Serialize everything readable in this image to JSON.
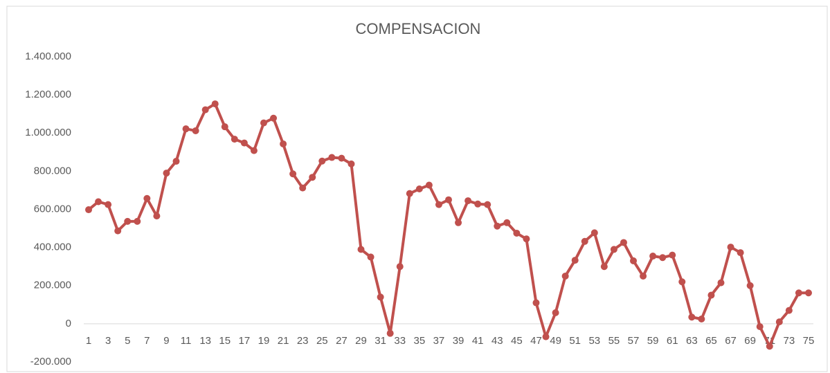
{
  "chart_data": {
    "type": "line",
    "title": "COMPENSACION",
    "categories": [
      1,
      null,
      3,
      null,
      5,
      null,
      7,
      null,
      9,
      null,
      11,
      null,
      13,
      null,
      15,
      null,
      17,
      null,
      19,
      null,
      21,
      null,
      23,
      null,
      25,
      null,
      27,
      null,
      29,
      null,
      31,
      null,
      33,
      null,
      35,
      null,
      37,
      null,
      39,
      null,
      41,
      null,
      43,
      null,
      45,
      null,
      47,
      null,
      49,
      null,
      51,
      null,
      53,
      null,
      55,
      null,
      57,
      null,
      59,
      null,
      61,
      null,
      63,
      null,
      65,
      null,
      67,
      null,
      69,
      null,
      71,
      null,
      73,
      null,
      75
    ],
    "series": [
      {
        "name": "COMPENSACION",
        "color": "#c0504d",
        "values": [
          598000,
          640000,
          625000,
          487000,
          537000,
          537000,
          657000,
          565000,
          790000,
          852000,
          1022000,
          1012000,
          1122000,
          1153000,
          1033000,
          968000,
          948000,
          908000,
          1053000,
          1078000,
          943000,
          786000,
          712000,
          768000,
          853000,
          872000,
          868000,
          838000,
          390000,
          350000,
          140000,
          -50000,
          300000,
          683000,
          707000,
          727000,
          625000,
          650000,
          530000,
          645000,
          628000,
          625000,
          512000,
          530000,
          475000,
          445000,
          110000,
          -68000,
          58000,
          250000,
          333000,
          432000,
          477000,
          300000,
          390000,
          426000,
          330000,
          250000,
          355000,
          347000,
          360000,
          220000,
          35000,
          25000,
          150000,
          215000,
          402000,
          373000,
          200000,
          -15000,
          -118000,
          10000,
          70000,
          162000,
          162000
        ]
      }
    ],
    "ylim": [
      -200000,
      1400000
    ],
    "yticks": [
      {
        "value": -200000,
        "label": "-200.000"
      },
      0,
      {
        "value": 200000,
        "label": "200.000"
      },
      {
        "value": 400000,
        "label": "400.000"
      },
      {
        "value": 600000,
        "label": "600.000"
      },
      {
        "value": 800000,
        "label": "800.000"
      },
      {
        "value": 1000000,
        "label": "1.000.000"
      },
      {
        "value": 1200000,
        "label": "1.200.000"
      },
      {
        "value": 1400000,
        "label": "1.400.000"
      }
    ],
    "grid": false
  }
}
